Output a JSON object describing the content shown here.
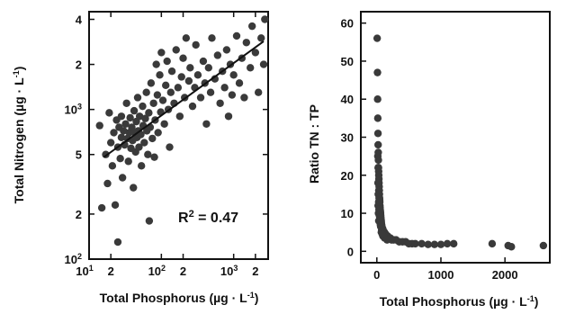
{
  "chart_data": [
    {
      "type": "scatter",
      "xlabel": "Total Phosphorus (µg · L-1)",
      "ylabel": "Total Nitrogen (µg · L-1)",
      "x_scale": "log",
      "y_scale": "log",
      "xlim": [
        10,
        3000
      ],
      "ylim": [
        100,
        4500
      ],
      "x_ticks": [
        {
          "value": 10,
          "label": "10",
          "minor": "1"
        },
        {
          "value": 20,
          "label": "2",
          "minor": ""
        },
        {
          "value": 100,
          "label": "10",
          "minor": "2"
        },
        {
          "value": 200,
          "label": "2",
          "minor": ""
        },
        {
          "value": 1000,
          "label": "10",
          "minor": "3"
        },
        {
          "value": 2000,
          "label": "2",
          "minor": ""
        }
      ],
      "y_ticks": [
        {
          "value": 100,
          "label": "10",
          "sup": "2"
        },
        {
          "value": 200,
          "label": "2",
          "sup": ""
        },
        {
          "value": 500,
          "label": "5",
          "sup": ""
        },
        {
          "value": 1000,
          "label": "10",
          "sup": "3"
        },
        {
          "value": 2000,
          "label": "2",
          "sup": ""
        },
        {
          "value": 4000,
          "label": "4",
          "sup": ""
        }
      ],
      "annotation": {
        "text": "R",
        "sup": "2",
        "rest": " = 0.47"
      },
      "regression": {
        "x": [
          16,
          2600
        ],
        "y": [
          480,
          2850
        ]
      },
      "series": [
        {
          "points": [
            {
              "x": 14,
              "y": 780
            },
            {
              "x": 15,
              "y": 220
            },
            {
              "x": 17,
              "y": 500
            },
            {
              "x": 18,
              "y": 320
            },
            {
              "x": 19,
              "y": 950
            },
            {
              "x": 20,
              "y": 600
            },
            {
              "x": 21,
              "y": 420
            },
            {
              "x": 22,
              "y": 700
            },
            {
              "x": 23,
              "y": 230
            },
            {
              "x": 24,
              "y": 850
            },
            {
              "x": 25,
              "y": 130
            },
            {
              "x": 25,
              "y": 560
            },
            {
              "x": 26,
              "y": 760
            },
            {
              "x": 27,
              "y": 470
            },
            {
              "x": 28,
              "y": 650
            },
            {
              "x": 28,
              "y": 900
            },
            {
              "x": 29,
              "y": 350
            },
            {
              "x": 30,
              "y": 720
            },
            {
              "x": 31,
              "y": 580
            },
            {
              "x": 32,
              "y": 800
            },
            {
              "x": 33,
              "y": 1100
            },
            {
              "x": 34,
              "y": 640
            },
            {
              "x": 35,
              "y": 450
            },
            {
              "x": 36,
              "y": 700
            },
            {
              "x": 37,
              "y": 880
            },
            {
              "x": 38,
              "y": 550
            },
            {
              "x": 39,
              "y": 760
            },
            {
              "x": 40,
              "y": 620
            },
            {
              "x": 41,
              "y": 300
            },
            {
              "x": 42,
              "y": 980
            },
            {
              "x": 43,
              "y": 700
            },
            {
              "x": 44,
              "y": 520
            },
            {
              "x": 45,
              "y": 830
            },
            {
              "x": 46,
              "y": 650
            },
            {
              "x": 47,
              "y": 1200
            },
            {
              "x": 48,
              "y": 720
            },
            {
              "x": 49,
              "y": 560
            },
            {
              "x": 50,
              "y": 900
            },
            {
              "x": 52,
              "y": 680
            },
            {
              "x": 53,
              "y": 420
            },
            {
              "x": 55,
              "y": 1050
            },
            {
              "x": 56,
              "y": 780
            },
            {
              "x": 58,
              "y": 600
            },
            {
              "x": 60,
              "y": 870
            },
            {
              "x": 62,
              "y": 1300
            },
            {
              "x": 63,
              "y": 720
            },
            {
              "x": 65,
              "y": 500
            },
            {
              "x": 67,
              "y": 950
            },
            {
              "x": 68,
              "y": 180
            },
            {
              "x": 70,
              "y": 760
            },
            {
              "x": 72,
              "y": 1500
            },
            {
              "x": 75,
              "y": 640
            },
            {
              "x": 78,
              "y": 1100
            },
            {
              "x": 80,
              "y": 480
            },
            {
              "x": 82,
              "y": 850
            },
            {
              "x": 85,
              "y": 2000
            },
            {
              "x": 88,
              "y": 1250
            },
            {
              "x": 90,
              "y": 700
            },
            {
              "x": 95,
              "y": 1700
            },
            {
              "x": 98,
              "y": 960
            },
            {
              "x": 100,
              "y": 2400
            },
            {
              "x": 105,
              "y": 1150
            },
            {
              "x": 110,
              "y": 800
            },
            {
              "x": 115,
              "y": 1450
            },
            {
              "x": 120,
              "y": 2100
            },
            {
              "x": 125,
              "y": 1000
            },
            {
              "x": 130,
              "y": 560
            },
            {
              "x": 135,
              "y": 1300
            },
            {
              "x": 140,
              "y": 1800
            },
            {
              "x": 150,
              "y": 1100
            },
            {
              "x": 160,
              "y": 2500
            },
            {
              "x": 170,
              "y": 1400
            },
            {
              "x": 180,
              "y": 900
            },
            {
              "x": 190,
              "y": 1650
            },
            {
              "x": 200,
              "y": 2200
            },
            {
              "x": 210,
              "y": 1200
            },
            {
              "x": 220,
              "y": 3000
            },
            {
              "x": 240,
              "y": 1550
            },
            {
              "x": 250,
              "y": 1900
            },
            {
              "x": 270,
              "y": 1050
            },
            {
              "x": 290,
              "y": 1400
            },
            {
              "x": 300,
              "y": 2700
            },
            {
              "x": 320,
              "y": 1700
            },
            {
              "x": 350,
              "y": 1200
            },
            {
              "x": 380,
              "y": 2100
            },
            {
              "x": 400,
              "y": 1500
            },
            {
              "x": 420,
              "y": 800
            },
            {
              "x": 450,
              "y": 1900
            },
            {
              "x": 480,
              "y": 1300
            },
            {
              "x": 500,
              "y": 3000
            },
            {
              "x": 550,
              "y": 1600
            },
            {
              "x": 600,
              "y": 2300
            },
            {
              "x": 650,
              "y": 1100
            },
            {
              "x": 700,
              "y": 1800
            },
            {
              "x": 750,
              "y": 1400
            },
            {
              "x": 800,
              "y": 2500
            },
            {
              "x": 850,
              "y": 900
            },
            {
              "x": 900,
              "y": 2000
            },
            {
              "x": 950,
              "y": 1250
            },
            {
              "x": 1000,
              "y": 1700
            },
            {
              "x": 1100,
              "y": 3100
            },
            {
              "x": 1200,
              "y": 1500
            },
            {
              "x": 1300,
              "y": 2200
            },
            {
              "x": 1400,
              "y": 1200
            },
            {
              "x": 1500,
              "y": 2800
            },
            {
              "x": 1700,
              "y": 1900
            },
            {
              "x": 1800,
              "y": 3600
            },
            {
              "x": 2000,
              "y": 2400
            },
            {
              "x": 2200,
              "y": 1300
            },
            {
              "x": 2400,
              "y": 3000
            },
            {
              "x": 2600,
              "y": 2000
            },
            {
              "x": 2700,
              "y": 4000
            }
          ]
        }
      ]
    },
    {
      "type": "scatter",
      "xlabel": "Total Phosphorus (µg · L-1)",
      "ylabel": "Ratio TN : TP",
      "xlim": [
        -250,
        2700
      ],
      "ylim": [
        -3,
        63
      ],
      "x_ticks": [
        {
          "value": 0,
          "label": "0"
        },
        {
          "value": 1000,
          "label": "1000"
        },
        {
          "value": 2000,
          "label": "2000"
        }
      ],
      "y_ticks": [
        {
          "value": 0,
          "label": "0"
        },
        {
          "value": 10,
          "label": "10"
        },
        {
          "value": 20,
          "label": "20"
        },
        {
          "value": 30,
          "label": "30"
        },
        {
          "value": 40,
          "label": "40"
        },
        {
          "value": 50,
          "label": "50"
        },
        {
          "value": 60,
          "label": "60"
        }
      ],
      "series": [
        {
          "points": [
            {
              "x": 5,
              "y": 56
            },
            {
              "x": 10,
              "y": 47
            },
            {
              "x": 12,
              "y": 40
            },
            {
              "x": 15,
              "y": 35
            },
            {
              "x": 18,
              "y": 31
            },
            {
              "x": 20,
              "y": 28
            },
            {
              "x": 22,
              "y": 26
            },
            {
              "x": 24,
              "y": 24
            },
            {
              "x": 26,
              "y": 22
            },
            {
              "x": 28,
              "y": 21
            },
            {
              "x": 30,
              "y": 20
            },
            {
              "x": 32,
              "y": 19
            },
            {
              "x": 34,
              "y": 18
            },
            {
              "x": 36,
              "y": 17
            },
            {
              "x": 38,
              "y": 16
            },
            {
              "x": 40,
              "y": 15
            },
            {
              "x": 42,
              "y": 14
            },
            {
              "x": 44,
              "y": 13.5
            },
            {
              "x": 46,
              "y": 13
            },
            {
              "x": 48,
              "y": 12
            },
            {
              "x": 50,
              "y": 11.5
            },
            {
              "x": 52,
              "y": 11
            },
            {
              "x": 55,
              "y": 10.5
            },
            {
              "x": 58,
              "y": 10
            },
            {
              "x": 60,
              "y": 9.5
            },
            {
              "x": 62,
              "y": 9
            },
            {
              "x": 65,
              "y": 8.5
            },
            {
              "x": 68,
              "y": 8
            },
            {
              "x": 70,
              "y": 7.5
            },
            {
              "x": 75,
              "y": 7
            },
            {
              "x": 80,
              "y": 6.5
            },
            {
              "x": 85,
              "y": 6
            },
            {
              "x": 90,
              "y": 6
            },
            {
              "x": 100,
              "y": 5.5
            },
            {
              "x": 110,
              "y": 5
            },
            {
              "x": 120,
              "y": 5
            },
            {
              "x": 130,
              "y": 4.5
            },
            {
              "x": 140,
              "y": 4.5
            },
            {
              "x": 150,
              "y": 4
            },
            {
              "x": 170,
              "y": 4
            },
            {
              "x": 190,
              "y": 3.5
            },
            {
              "x": 210,
              "y": 3.5
            },
            {
              "x": 230,
              "y": 3
            },
            {
              "x": 260,
              "y": 3
            },
            {
              "x": 300,
              "y": 3
            },
            {
              "x": 350,
              "y": 2.5
            },
            {
              "x": 400,
              "y": 2.5
            },
            {
              "x": 450,
              "y": 2.5
            },
            {
              "x": 500,
              "y": 2
            },
            {
              "x": 550,
              "y": 2
            },
            {
              "x": 600,
              "y": 2
            },
            {
              "x": 700,
              "y": 2
            },
            {
              "x": 800,
              "y": 1.8
            },
            {
              "x": 900,
              "y": 1.8
            },
            {
              "x": 1000,
              "y": 1.8
            },
            {
              "x": 1100,
              "y": 2
            },
            {
              "x": 1200,
              "y": 2
            },
            {
              "x": 1800,
              "y": 2
            },
            {
              "x": 2050,
              "y": 1.5
            },
            {
              "x": 2100,
              "y": 1.2
            },
            {
              "x": 2600,
              "y": 1.5
            },
            {
              "x": 15,
              "y": 25
            },
            {
              "x": 20,
              "y": 22
            },
            {
              "x": 25,
              "y": 18
            },
            {
              "x": 30,
              "y": 16
            },
            {
              "x": 35,
              "y": 14
            },
            {
              "x": 40,
              "y": 12
            },
            {
              "x": 20,
              "y": 12
            },
            {
              "x": 25,
              "y": 10
            },
            {
              "x": 30,
              "y": 8
            },
            {
              "x": 45,
              "y": 9
            },
            {
              "x": 55,
              "y": 7
            },
            {
              "x": 70,
              "y": 5
            },
            {
              "x": 95,
              "y": 4
            },
            {
              "x": 120,
              "y": 3.5
            },
            {
              "x": 160,
              "y": 3
            },
            {
              "x": 18,
              "y": 18
            },
            {
              "x": 22,
              "y": 15
            },
            {
              "x": 28,
              "y": 13
            },
            {
              "x": 33,
              "y": 11
            },
            {
              "x": 38,
              "y": 9.5
            },
            {
              "x": 48,
              "y": 8
            },
            {
              "x": 60,
              "y": 6.5
            },
            {
              "x": 75,
              "y": 5.5
            },
            {
              "x": 85,
              "y": 4.5
            }
          ]
        }
      ]
    }
  ]
}
